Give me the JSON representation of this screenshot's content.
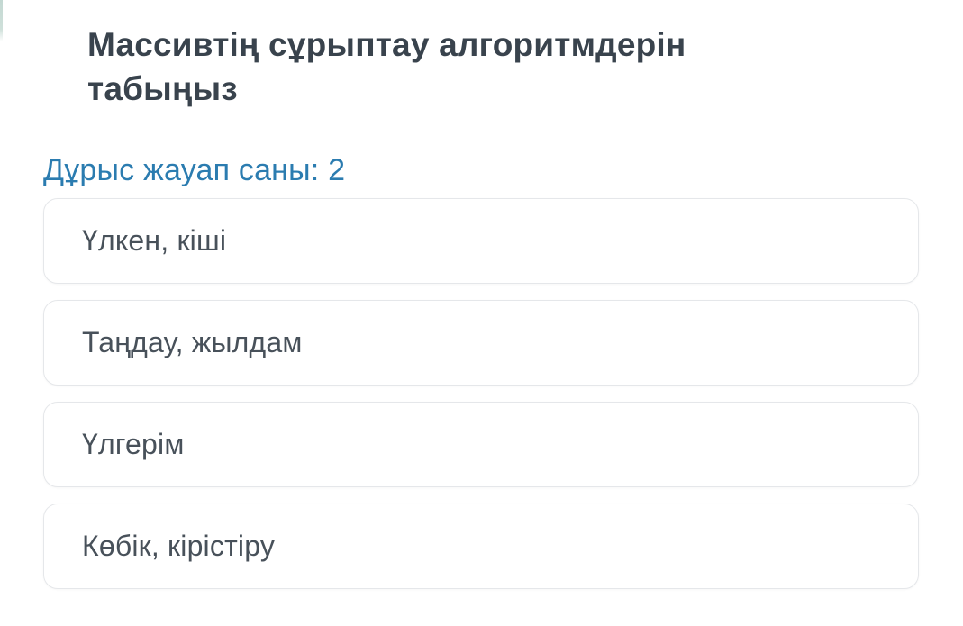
{
  "question": {
    "title": "Массивтің сұрыптау алгоритмдерін табыңыз",
    "answer_count_label": "Дұрыс жауап саны: 2"
  },
  "options": [
    {
      "label": "Үлкен, кіші"
    },
    {
      "label": "Таңдау, жылдам"
    },
    {
      "label": "Үлгерім"
    },
    {
      "label": "Көбік, кірістіру"
    }
  ],
  "colors": {
    "title_text": "#39434d",
    "answer_count_text": "#2b7cb0",
    "option_text": "#48515a",
    "option_border": "#e5e7ea",
    "background": "#ffffff",
    "accent_line": "#c3d8d2"
  }
}
